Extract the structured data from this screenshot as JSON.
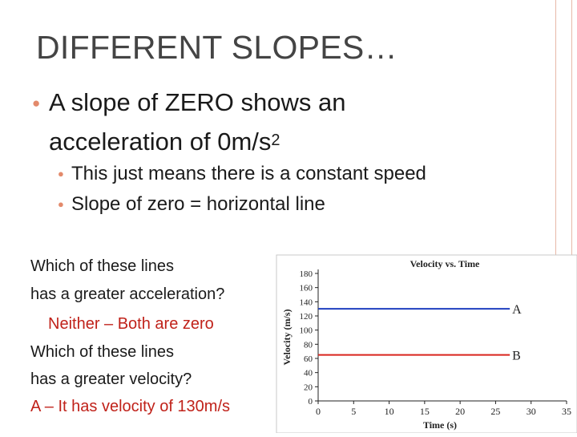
{
  "slide": {
    "title": "DIFFERENT SLOPES…",
    "bullet_main_line1": "A slope of ZERO shows an",
    "bullet_main_line2": "acceleration of 0m/s",
    "bullet_main_sup": "2",
    "sub_bullets": [
      "This just means there is a constant speed",
      "Slope of zero = horizontal line"
    ],
    "qa": [
      "Which of these lines",
      "has a greater acceleration?",
      "Neither – Both are zero",
      "Which of these lines",
      "has a greater velocity?",
      "A – It has velocity of 130m/s"
    ],
    "colors": {
      "accent": "#e38a6b",
      "answer": "#c0221a",
      "series_a": "#1f3fbf",
      "series_b": "#d9251d"
    }
  },
  "chart_data": {
    "type": "line",
    "title": "Velocity vs. Time",
    "xlabel": "Time (s)",
    "ylabel": "Velocity (m/s)",
    "xlim": [
      0,
      35
    ],
    "ylim": [
      0,
      180
    ],
    "xticks": [
      0,
      5,
      10,
      15,
      20,
      25,
      30,
      35
    ],
    "yticks": [
      0,
      20,
      40,
      60,
      80,
      100,
      120,
      140,
      160,
      180
    ],
    "grid": false,
    "series": [
      {
        "name": "A",
        "x": [
          0,
          27
        ],
        "y": [
          130,
          130
        ],
        "color": "#1f3fbf"
      },
      {
        "name": "B",
        "x": [
          0,
          27
        ],
        "y": [
          65,
          65
        ],
        "color": "#d9251d"
      }
    ]
  }
}
